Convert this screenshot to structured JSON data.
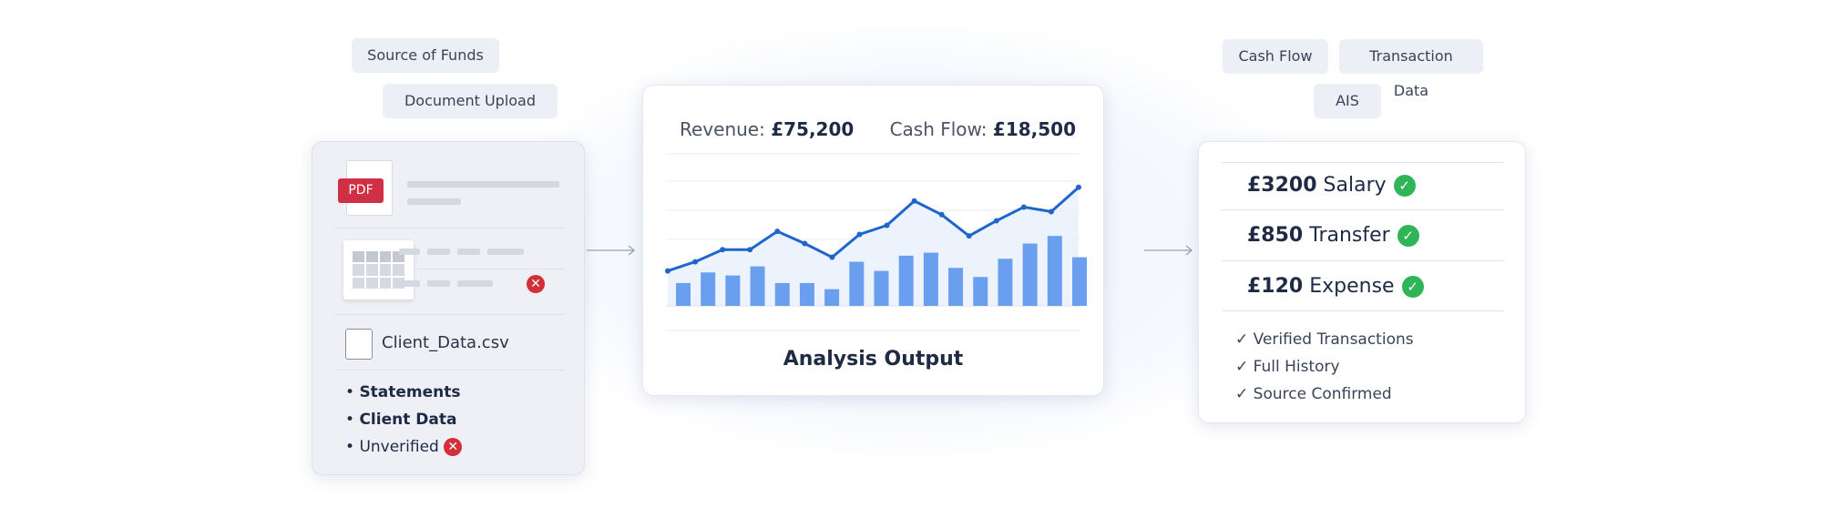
{
  "input_tags": [
    "Source of Funds",
    "Document Upload"
  ],
  "output_tags": [
    "Cash Flow",
    "Transaction Data",
    "AIS"
  ],
  "documents": {
    "pdf_badge": "PDF",
    "csv_file": "Client_Data.csv",
    "bullets": [
      {
        "label": "Statements",
        "status": ""
      },
      {
        "label": "Client Data",
        "status": ""
      },
      {
        "label": "Unverified",
        "status": "error"
      }
    ]
  },
  "analysis": {
    "revenue_label": "Revenue:",
    "revenue_value": "£75,200",
    "cashflow_label": "Cash Flow:",
    "cashflow_value": "£18,500",
    "title": "Analysis Output"
  },
  "chart_data": {
    "type": "bar+line",
    "title": "Analysis Output",
    "grid": true,
    "ylim": [
      0,
      100
    ],
    "line": [
      23,
      29,
      37,
      37,
      49,
      41,
      32,
      47,
      53,
      69,
      60,
      46,
      56,
      65,
      62,
      78
    ],
    "bars": [
      15,
      22,
      20,
      26,
      15,
      15,
      11,
      29,
      23,
      33,
      35,
      25,
      19,
      31,
      41,
      46,
      32
    ],
    "colors": {
      "line": "#1f66cc",
      "bar": "#6a9ff0"
    }
  },
  "transactions": [
    {
      "amount": "£3200",
      "label": "Salary",
      "status": "verified"
    },
    {
      "amount": "£850",
      "label": "Transfer",
      "status": "verified"
    },
    {
      "amount": "£120",
      "label": "Expense",
      "status": "verified"
    }
  ],
  "checks": [
    "Verified Transactions",
    "Full History",
    "Source Confirmed"
  ],
  "colors": {
    "error": "#d32f3a",
    "success": "#2fb457",
    "accent": "#1f66cc"
  }
}
